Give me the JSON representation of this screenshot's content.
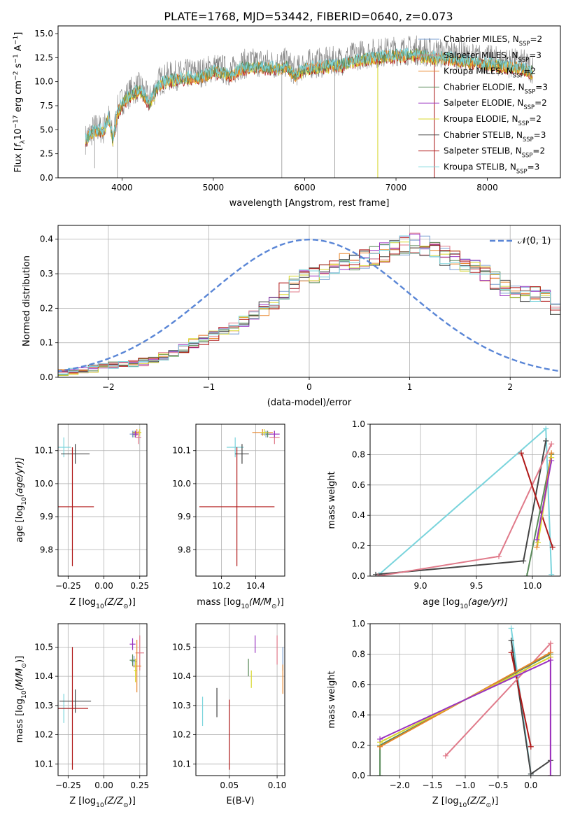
{
  "figure_title": "PLATE=1768, MJD=53442, FIBERID=0640, z=0.073",
  "series_colors": {
    "chabrier_miles": "#7a9fd0",
    "salpeter_miles": "#e07a8a",
    "kroupa_miles": "#e8852a",
    "chabrier_elodie": "#5a8a5a",
    "salpeter_elodie": "#9a32c0",
    "kroupa_elodie": "#d8d830",
    "chabrier_stelib": "#444444",
    "salpeter_stelib": "#b01818",
    "kroupa_stelib": "#7ad4dc",
    "observed": "#808080",
    "normal": "#5a86d6"
  },
  "chart_data": [
    {
      "id": "spectrum",
      "type": "line",
      "xlabel": "wavelength [Angstrom, rest frame]",
      "ylabel_parts": [
        "Flux [",
        "f",
        "λ",
        "10",
        "−17",
        " erg cm",
        "−2",
        " s",
        "−1",
        " A",
        "−1",
        "]"
      ],
      "xlim": [
        3300,
        8800
      ],
      "ylim": [
        0,
        15.8
      ],
      "xticks": [
        4000,
        5000,
        6000,
        7000,
        8000
      ],
      "yticks": [
        0.0,
        2.5,
        5.0,
        7.5,
        10.0,
        12.5,
        15.0
      ],
      "ytick_labels": [
        "0.0",
        "2.5",
        "5.0",
        "7.5",
        "10.0",
        "12.5",
        "15.0"
      ],
      "legend_placement": "right",
      "legend": [
        {
          "key": "chabrier_miles",
          "pre": "Chabrier MILES, N",
          "sub": "SSP",
          "post": "=2"
        },
        {
          "key": "salpeter_miles",
          "pre": "Salpeter MILES, N",
          "sub": "SSP",
          "post": "=3"
        },
        {
          "key": "kroupa_miles",
          "pre": "Kroupa MILES, N",
          "sub": "SSP",
          "post": "=2"
        },
        {
          "key": "chabrier_elodie",
          "pre": "Chabrier ELODIE, N",
          "sub": "SSP",
          "post": "=3"
        },
        {
          "key": "salpeter_elodie",
          "pre": "Salpeter ELODIE, N",
          "sub": "SSP",
          "post": "=2"
        },
        {
          "key": "kroupa_elodie",
          "pre": "Kroupa ELODIE, N",
          "sub": "SSP",
          "post": "=2"
        },
        {
          "key": "chabrier_stelib",
          "pre": "Chabrier STELIB, N",
          "sub": "SSP",
          "post": "=3"
        },
        {
          "key": "salpeter_stelib",
          "pre": "Salpeter STELIB, N",
          "sub": "SSP",
          "post": "=2"
        },
        {
          "key": "kroupa_stelib",
          "pre": "Kroupa STELIB, N",
          "sub": "SSP",
          "post": "=3"
        }
      ],
      "model_envelope": [
        [
          3600,
          4.0
        ],
        [
          3700,
          5.2
        ],
        [
          3800,
          5.0
        ],
        [
          3850,
          6.5
        ],
        [
          3900,
          4.0
        ],
        [
          3950,
          7.0
        ],
        [
          4000,
          8.0
        ],
        [
          4100,
          9.0
        ],
        [
          4200,
          9.5
        ],
        [
          4300,
          8.0
        ],
        [
          4400,
          10.0
        ],
        [
          4500,
          10.5
        ],
        [
          4700,
          10.8
        ],
        [
          4900,
          11.0
        ],
        [
          5000,
          11.5
        ],
        [
          5100,
          11.3
        ],
        [
          5200,
          11.0
        ],
        [
          5300,
          11.8
        ],
        [
          5500,
          12.0
        ],
        [
          5700,
          11.8
        ],
        [
          5800,
          12.0
        ],
        [
          5900,
          11.0
        ],
        [
          6000,
          11.8
        ],
        [
          6200,
          12.0
        ],
        [
          6400,
          12.2
        ],
        [
          6500,
          12.5
        ],
        [
          6600,
          12.8
        ],
        [
          6800,
          13.0
        ],
        [
          7000,
          13.2
        ],
        [
          7200,
          13.3
        ],
        [
          7400,
          13.0
        ],
        [
          7600,
          12.9
        ],
        [
          7800,
          12.5
        ],
        [
          8000,
          12.3
        ],
        [
          8200,
          12.0
        ],
        [
          8400,
          11.8
        ],
        [
          8500,
          11.3
        ]
      ],
      "observed_spikes": [
        [
          5750,
          0
        ],
        [
          6330,
          0
        ],
        [
          6800,
          0
        ],
        [
          7420,
          0
        ],
        [
          3700,
          1.0
        ],
        [
          3950,
          0
        ]
      ]
    },
    {
      "id": "residuals",
      "type": "histogram",
      "xlabel": "(data-model)/error",
      "ylabel": "Normed distribution",
      "xlim": [
        -2.5,
        2.5
      ],
      "ylim": [
        0,
        0.44
      ],
      "xticks": [
        -2,
        -1,
        0,
        1,
        2
      ],
      "xtick_labels": [
        "−2",
        "−1",
        "0",
        "1",
        "2"
      ],
      "yticks": [
        0.0,
        0.1,
        0.2,
        0.3,
        0.4
      ],
      "ytick_labels": [
        "0.0",
        "0.1",
        "0.2",
        "0.3",
        "0.4"
      ],
      "legend": [
        {
          "key": "normal",
          "label": "𝒩(0, 1)"
        }
      ],
      "legend_placement": "top-right",
      "bin_width": 0.1,
      "bin_start": -2.5,
      "base_heights": [
        0.015,
        0.018,
        0.02,
        0.025,
        0.03,
        0.035,
        0.035,
        0.04,
        0.045,
        0.05,
        0.06,
        0.07,
        0.085,
        0.1,
        0.11,
        0.12,
        0.13,
        0.14,
        0.16,
        0.18,
        0.2,
        0.22,
        0.25,
        0.27,
        0.29,
        0.3,
        0.31,
        0.32,
        0.33,
        0.34,
        0.345,
        0.35,
        0.36,
        0.37,
        0.38,
        0.39,
        0.38,
        0.36,
        0.35,
        0.34,
        0.33,
        0.32,
        0.3,
        0.28,
        0.26,
        0.25,
        0.24,
        0.24,
        0.23,
        0.2
      ]
    },
    {
      "id": "z_vs_age",
      "type": "scatter",
      "xlabel_parts": [
        "Z [log",
        "10",
        "(Z/Z",
        "⊙",
        ")]"
      ],
      "ylabel_parts": [
        "age  [log",
        "10",
        "(age/yr)]"
      ],
      "xlim": [
        -0.32,
        0.3
      ],
      "ylim": [
        9.72,
        10.18
      ],
      "xticks": [
        -0.25,
        0.0,
        0.25
      ],
      "xtick_labels": [
        "−0.25",
        "0.00",
        "0.25"
      ],
      "yticks": [
        9.8,
        9.9,
        10.0,
        10.1
      ],
      "ytick_labels": [
        "9.8",
        "9.9",
        "10.0",
        "10.1"
      ],
      "points": [
        {
          "key": "kroupa_stelib",
          "x": -0.28,
          "y": 10.11,
          "xerr": 0.05,
          "yerr": 0.03
        },
        {
          "key": "chabrier_stelib",
          "x": -0.2,
          "y": 10.09,
          "xerr": 0.1,
          "yerr": 0.03
        },
        {
          "key": "salpeter_stelib",
          "x": -0.22,
          "y": 9.93,
          "xerr": 0.15,
          "yerr": 0.18
        },
        {
          "key": "chabrier_miles",
          "x": 0.2,
          "y": 10.15,
          "xerr": 0.02,
          "yerr": 0.01
        },
        {
          "key": "salpeter_miles",
          "x": 0.24,
          "y": 10.14,
          "xerr": 0.02,
          "yerr": 0.02
        },
        {
          "key": "kroupa_miles",
          "x": 0.23,
          "y": 10.155,
          "xerr": 0.03,
          "yerr": 0.01
        },
        {
          "key": "chabrier_elodie",
          "x": 0.21,
          "y": 10.15,
          "xerr": 0.01,
          "yerr": 0.01
        },
        {
          "key": "salpeter_elodie",
          "x": 0.22,
          "y": 10.15,
          "xerr": 0.02,
          "yerr": 0.01
        },
        {
          "key": "kroupa_elodie",
          "x": 0.25,
          "y": 10.155,
          "xerr": 0.01,
          "yerr": 0.01
        }
      ]
    },
    {
      "id": "mass_vs_age",
      "type": "scatter",
      "xlabel_parts": [
        "mass [log",
        "10",
        "(M/M",
        "⊙",
        ")]"
      ],
      "ylabel_parts": [],
      "xlim": [
        10.05,
        10.57
      ],
      "ylim": [
        9.72,
        10.18
      ],
      "xticks": [
        10.2,
        10.4
      ],
      "xtick_labels": [
        "10.2",
        "10.4"
      ],
      "yticks": [
        9.8,
        9.9,
        10.0,
        10.1
      ],
      "ytick_labels": [
        "9.8",
        "9.9",
        "10.0",
        "10.1"
      ],
      "points": [
        {
          "key": "kroupa_stelib",
          "x": 10.28,
          "y": 10.11,
          "xerr": 0.05,
          "yerr": 0.03
        },
        {
          "key": "chabrier_stelib",
          "x": 10.32,
          "y": 10.09,
          "xerr": 0.04,
          "yerr": 0.03
        },
        {
          "key": "salpeter_stelib",
          "x": 10.29,
          "y": 9.93,
          "xerr": 0.22,
          "yerr": 0.18
        },
        {
          "key": "chabrier_miles",
          "x": 10.46,
          "y": 10.15,
          "xerr": 0.03,
          "yerr": 0.01
        },
        {
          "key": "salpeter_miles",
          "x": 10.51,
          "y": 10.14,
          "xerr": 0.03,
          "yerr": 0.02
        },
        {
          "key": "kroupa_miles",
          "x": 10.44,
          "y": 10.155,
          "xerr": 0.06,
          "yerr": 0.01
        },
        {
          "key": "chabrier_elodie",
          "x": 10.47,
          "y": 10.15,
          "xerr": 0.01,
          "yerr": 0.01
        },
        {
          "key": "salpeter_elodie",
          "x": 10.51,
          "y": 10.15,
          "xerr": 0.03,
          "yerr": 0.01
        },
        {
          "key": "kroupa_elodie",
          "x": 10.45,
          "y": 10.155,
          "xerr": 0.02,
          "yerr": 0.01
        }
      ]
    },
    {
      "id": "age_weight",
      "type": "line",
      "xlabel_parts": [
        "age  [log",
        "10",
        "(age/yr)]"
      ],
      "ylabel": "mass weight",
      "xlim": [
        8.55,
        10.25
      ],
      "ylim": [
        0,
        1.0
      ],
      "xticks": [
        9.0,
        9.5,
        10.0
      ],
      "xtick_labels": [
        "9.0",
        "9.5",
        "10.0"
      ],
      "yticks": [
        0.0,
        0.2,
        0.4,
        0.6,
        0.8,
        1.0
      ],
      "ytick_labels": [
        "0.0",
        "0.2",
        "0.4",
        "0.6",
        "0.8",
        "1.0"
      ],
      "series": [
        {
          "key": "kroupa_stelib",
          "x": [
            8.63,
            10.12,
            10.17
          ],
          "y": [
            0.01,
            0.97,
            0.01
          ]
        },
        {
          "key": "chabrier_stelib",
          "x": [
            8.6,
            9.92,
            10.12
          ],
          "y": [
            0.01,
            0.1,
            0.89
          ]
        },
        {
          "key": "salpeter_miles",
          "x": [
            8.62,
            9.7,
            10.17
          ],
          "y": [
            0.0,
            0.13,
            0.87
          ]
        },
        {
          "key": "salpeter_stelib",
          "x": [
            9.9,
            10.18
          ],
          "y": [
            0.81,
            0.19
          ]
        },
        {
          "key": "chabrier_elodie",
          "x": [
            9.95,
            10.17
          ],
          "y": [
            0.0,
            0.8
          ]
        },
        {
          "key": "kroupa_miles",
          "x": [
            10.04,
            10.17
          ],
          "y": [
            0.19,
            0.81
          ]
        },
        {
          "key": "kroupa_elodie",
          "x": [
            10.05,
            10.17
          ],
          "y": [
            0.22,
            0.78
          ]
        },
        {
          "key": "salpeter_elodie",
          "x": [
            10.04,
            10.17
          ],
          "y": [
            0.24,
            0.76
          ]
        }
      ]
    },
    {
      "id": "z_vs_mass",
      "type": "scatter",
      "xlabel_parts": [
        "Z [log",
        "10",
        "(Z/Z",
        "⊙",
        ")]"
      ],
      "ylabel_parts": [
        "mass [log",
        "10",
        "(M/M",
        "⊙",
        ")]"
      ],
      "xlim": [
        -0.32,
        0.3
      ],
      "ylim": [
        10.06,
        10.58
      ],
      "xticks": [
        -0.25,
        0.0,
        0.25
      ],
      "xtick_labels": [
        "−0.25",
        "0.00",
        "0.25"
      ],
      "yticks": [
        10.1,
        10.2,
        10.3,
        10.4,
        10.5
      ],
      "ytick_labels": [
        "10.1",
        "10.2",
        "10.3",
        "10.4",
        "10.5"
      ],
      "points": [
        {
          "key": "kroupa_stelib",
          "x": -0.28,
          "y": 10.29,
          "xerr": 0.05,
          "yerr": 0.05
        },
        {
          "key": "chabrier_stelib",
          "x": -0.2,
          "y": 10.315,
          "xerr": 0.11,
          "yerr": 0.04
        },
        {
          "key": "salpeter_stelib",
          "x": -0.22,
          "y": 10.29,
          "xerr": 0.11,
          "yerr": 0.21
        },
        {
          "key": "chabrier_miles",
          "x": 0.21,
          "y": 10.45,
          "xerr": 0.02,
          "yerr": 0.02
        },
        {
          "key": "salpeter_miles",
          "x": 0.25,
          "y": 10.48,
          "xerr": 0.03,
          "yerr": 0.06
        },
        {
          "key": "kroupa_miles",
          "x": 0.23,
          "y": 10.435,
          "xerr": 0.03,
          "yerr": 0.09
        },
        {
          "key": "chabrier_elodie",
          "x": 0.2,
          "y": 10.455,
          "xerr": 0.02,
          "yerr": 0.02
        },
        {
          "key": "salpeter_elodie",
          "x": 0.2,
          "y": 10.51,
          "xerr": 0.02,
          "yerr": 0.02
        },
        {
          "key": "kroupa_elodie",
          "x": 0.22,
          "y": 10.42,
          "xerr": 0.01,
          "yerr": 0.04
        }
      ]
    },
    {
      "id": "ebv_vs_mass",
      "type": "scatter",
      "xlabel": "E(B-V)",
      "xlim": [
        0.015,
        0.108
      ],
      "ylim": [
        10.06,
        10.58
      ],
      "xticks": [
        0.05,
        0.1
      ],
      "xtick_labels": [
        "0.05",
        "0.10"
      ],
      "yticks": [
        10.1,
        10.2,
        10.3,
        10.4,
        10.5
      ],
      "ytick_labels": [
        "10.1",
        "10.2",
        "10.3",
        "10.4",
        "10.5"
      ],
      "points": [
        {
          "key": "kroupa_stelib",
          "x": 0.022,
          "y": 10.28,
          "yerr": 0.05
        },
        {
          "key": "chabrier_stelib",
          "x": 0.037,
          "y": 10.31,
          "yerr": 0.05
        },
        {
          "key": "salpeter_stelib",
          "x": 0.05,
          "y": 10.2,
          "yerr": 0.12
        },
        {
          "key": "chabrier_elodie",
          "x": 0.07,
          "y": 10.43,
          "yerr": 0.03
        },
        {
          "key": "kroupa_elodie",
          "x": 0.073,
          "y": 10.39,
          "yerr": 0.03
        },
        {
          "key": "salpeter_elodie",
          "x": 0.077,
          "y": 10.51,
          "yerr": 0.03
        },
        {
          "key": "salpeter_miles",
          "x": 0.1,
          "y": 10.49,
          "yerr": 0.05
        },
        {
          "key": "chabrier_miles",
          "x": 0.106,
          "y": 10.46,
          "yerr": 0.04
        },
        {
          "key": "kroupa_miles",
          "x": 0.106,
          "y": 10.39,
          "yerr": 0.05
        }
      ]
    },
    {
      "id": "z_weight",
      "type": "line",
      "xlabel_parts": [
        "Z [log",
        "10",
        "(Z/Z",
        "⊙",
        ")]"
      ],
      "ylabel": "mass weight",
      "xlim": [
        -2.45,
        0.45
      ],
      "ylim": [
        0,
        1.0
      ],
      "xticks": [
        -2.0,
        -1.5,
        -1.0,
        -0.5,
        0.0
      ],
      "xtick_labels": [
        "−2.0",
        "−1.5",
        "−1.0",
        "−0.5",
        "0.0"
      ],
      "yticks": [
        0.0,
        0.2,
        0.4,
        0.6,
        0.8,
        1.0
      ],
      "ytick_labels": [
        "0.0",
        "0.2",
        "0.4",
        "0.6",
        "0.8",
        "1.0"
      ],
      "series": [
        {
          "key": "kroupa_stelib",
          "x": [
            -0.3,
            0.0
          ],
          "y": [
            0.97,
            0.01
          ]
        },
        {
          "key": "chabrier_stelib",
          "x": [
            -0.3,
            0.0,
            0.3
          ],
          "y": [
            0.89,
            0.01,
            0.1
          ]
        },
        {
          "key": "salpeter_stelib",
          "x": [
            -0.3,
            0.0
          ],
          "y": [
            0.81,
            0.19
          ]
        },
        {
          "key": "salpeter_miles",
          "x": [
            -1.3,
            0.3,
            0.3
          ],
          "y": [
            0.13,
            0.87,
            0.0
          ]
        },
        {
          "key": "chabrier_elodie",
          "x": [
            -2.3,
            -2.3,
            0.3
          ],
          "y": [
            0.0,
            0.2,
            0.8
          ]
        },
        {
          "key": "kroupa_miles",
          "x": [
            -2.3,
            0.3
          ],
          "y": [
            0.19,
            0.81
          ]
        },
        {
          "key": "kroupa_elodie",
          "x": [
            -2.3,
            0.3
          ],
          "y": [
            0.22,
            0.78
          ]
        },
        {
          "key": "salpeter_elodie",
          "x": [
            -2.3,
            0.3,
            0.3
          ],
          "y": [
            0.24,
            0.76,
            0.0
          ]
        }
      ]
    }
  ]
}
